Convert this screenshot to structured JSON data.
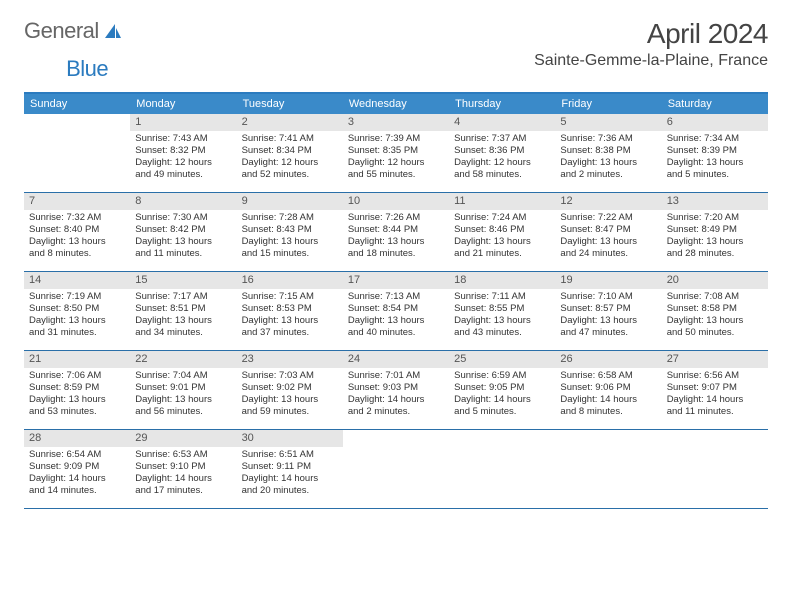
{
  "logo": {
    "text1": "General",
    "text2": "Blue"
  },
  "title": "April 2024",
  "location": "Sainte-Gemme-la-Plaine, France",
  "colors": {
    "header_bg": "#3a8ac9",
    "header_text": "#ffffff",
    "border": "#2a6fa8",
    "daynum_bg": "#e6e6e6",
    "daynum_text": "#555555",
    "body_text": "#333333",
    "title_text": "#444444",
    "logo_gray": "#666666",
    "logo_blue": "#2b7bbf"
  },
  "typography": {
    "title_fontsize": 28,
    "location_fontsize": 16,
    "dow_fontsize": 11,
    "daynum_fontsize": 11,
    "body_fontsize": 9.5
  },
  "days_of_week": [
    "Sunday",
    "Monday",
    "Tuesday",
    "Wednesday",
    "Thursday",
    "Friday",
    "Saturday"
  ],
  "weeks": [
    [
      null,
      {
        "n": "1",
        "sr": "Sunrise: 7:43 AM",
        "ss": "Sunset: 8:32 PM",
        "d1": "Daylight: 12 hours",
        "d2": "and 49 minutes."
      },
      {
        "n": "2",
        "sr": "Sunrise: 7:41 AM",
        "ss": "Sunset: 8:34 PM",
        "d1": "Daylight: 12 hours",
        "d2": "and 52 minutes."
      },
      {
        "n": "3",
        "sr": "Sunrise: 7:39 AM",
        "ss": "Sunset: 8:35 PM",
        "d1": "Daylight: 12 hours",
        "d2": "and 55 minutes."
      },
      {
        "n": "4",
        "sr": "Sunrise: 7:37 AM",
        "ss": "Sunset: 8:36 PM",
        "d1": "Daylight: 12 hours",
        "d2": "and 58 minutes."
      },
      {
        "n": "5",
        "sr": "Sunrise: 7:36 AM",
        "ss": "Sunset: 8:38 PM",
        "d1": "Daylight: 13 hours",
        "d2": "and 2 minutes."
      },
      {
        "n": "6",
        "sr": "Sunrise: 7:34 AM",
        "ss": "Sunset: 8:39 PM",
        "d1": "Daylight: 13 hours",
        "d2": "and 5 minutes."
      }
    ],
    [
      {
        "n": "7",
        "sr": "Sunrise: 7:32 AM",
        "ss": "Sunset: 8:40 PM",
        "d1": "Daylight: 13 hours",
        "d2": "and 8 minutes."
      },
      {
        "n": "8",
        "sr": "Sunrise: 7:30 AM",
        "ss": "Sunset: 8:42 PM",
        "d1": "Daylight: 13 hours",
        "d2": "and 11 minutes."
      },
      {
        "n": "9",
        "sr": "Sunrise: 7:28 AM",
        "ss": "Sunset: 8:43 PM",
        "d1": "Daylight: 13 hours",
        "d2": "and 15 minutes."
      },
      {
        "n": "10",
        "sr": "Sunrise: 7:26 AM",
        "ss": "Sunset: 8:44 PM",
        "d1": "Daylight: 13 hours",
        "d2": "and 18 minutes."
      },
      {
        "n": "11",
        "sr": "Sunrise: 7:24 AM",
        "ss": "Sunset: 8:46 PM",
        "d1": "Daylight: 13 hours",
        "d2": "and 21 minutes."
      },
      {
        "n": "12",
        "sr": "Sunrise: 7:22 AM",
        "ss": "Sunset: 8:47 PM",
        "d1": "Daylight: 13 hours",
        "d2": "and 24 minutes."
      },
      {
        "n": "13",
        "sr": "Sunrise: 7:20 AM",
        "ss": "Sunset: 8:49 PM",
        "d1": "Daylight: 13 hours",
        "d2": "and 28 minutes."
      }
    ],
    [
      {
        "n": "14",
        "sr": "Sunrise: 7:19 AM",
        "ss": "Sunset: 8:50 PM",
        "d1": "Daylight: 13 hours",
        "d2": "and 31 minutes."
      },
      {
        "n": "15",
        "sr": "Sunrise: 7:17 AM",
        "ss": "Sunset: 8:51 PM",
        "d1": "Daylight: 13 hours",
        "d2": "and 34 minutes."
      },
      {
        "n": "16",
        "sr": "Sunrise: 7:15 AM",
        "ss": "Sunset: 8:53 PM",
        "d1": "Daylight: 13 hours",
        "d2": "and 37 minutes."
      },
      {
        "n": "17",
        "sr": "Sunrise: 7:13 AM",
        "ss": "Sunset: 8:54 PM",
        "d1": "Daylight: 13 hours",
        "d2": "and 40 minutes."
      },
      {
        "n": "18",
        "sr": "Sunrise: 7:11 AM",
        "ss": "Sunset: 8:55 PM",
        "d1": "Daylight: 13 hours",
        "d2": "and 43 minutes."
      },
      {
        "n": "19",
        "sr": "Sunrise: 7:10 AM",
        "ss": "Sunset: 8:57 PM",
        "d1": "Daylight: 13 hours",
        "d2": "and 47 minutes."
      },
      {
        "n": "20",
        "sr": "Sunrise: 7:08 AM",
        "ss": "Sunset: 8:58 PM",
        "d1": "Daylight: 13 hours",
        "d2": "and 50 minutes."
      }
    ],
    [
      {
        "n": "21",
        "sr": "Sunrise: 7:06 AM",
        "ss": "Sunset: 8:59 PM",
        "d1": "Daylight: 13 hours",
        "d2": "and 53 minutes."
      },
      {
        "n": "22",
        "sr": "Sunrise: 7:04 AM",
        "ss": "Sunset: 9:01 PM",
        "d1": "Daylight: 13 hours",
        "d2": "and 56 minutes."
      },
      {
        "n": "23",
        "sr": "Sunrise: 7:03 AM",
        "ss": "Sunset: 9:02 PM",
        "d1": "Daylight: 13 hours",
        "d2": "and 59 minutes."
      },
      {
        "n": "24",
        "sr": "Sunrise: 7:01 AM",
        "ss": "Sunset: 9:03 PM",
        "d1": "Daylight: 14 hours",
        "d2": "and 2 minutes."
      },
      {
        "n": "25",
        "sr": "Sunrise: 6:59 AM",
        "ss": "Sunset: 9:05 PM",
        "d1": "Daylight: 14 hours",
        "d2": "and 5 minutes."
      },
      {
        "n": "26",
        "sr": "Sunrise: 6:58 AM",
        "ss": "Sunset: 9:06 PM",
        "d1": "Daylight: 14 hours",
        "d2": "and 8 minutes."
      },
      {
        "n": "27",
        "sr": "Sunrise: 6:56 AM",
        "ss": "Sunset: 9:07 PM",
        "d1": "Daylight: 14 hours",
        "d2": "and 11 minutes."
      }
    ],
    [
      {
        "n": "28",
        "sr": "Sunrise: 6:54 AM",
        "ss": "Sunset: 9:09 PM",
        "d1": "Daylight: 14 hours",
        "d2": "and 14 minutes."
      },
      {
        "n": "29",
        "sr": "Sunrise: 6:53 AM",
        "ss": "Sunset: 9:10 PM",
        "d1": "Daylight: 14 hours",
        "d2": "and 17 minutes."
      },
      {
        "n": "30",
        "sr": "Sunrise: 6:51 AM",
        "ss": "Sunset: 9:11 PM",
        "d1": "Daylight: 14 hours",
        "d2": "and 20 minutes."
      },
      null,
      null,
      null,
      null
    ]
  ]
}
